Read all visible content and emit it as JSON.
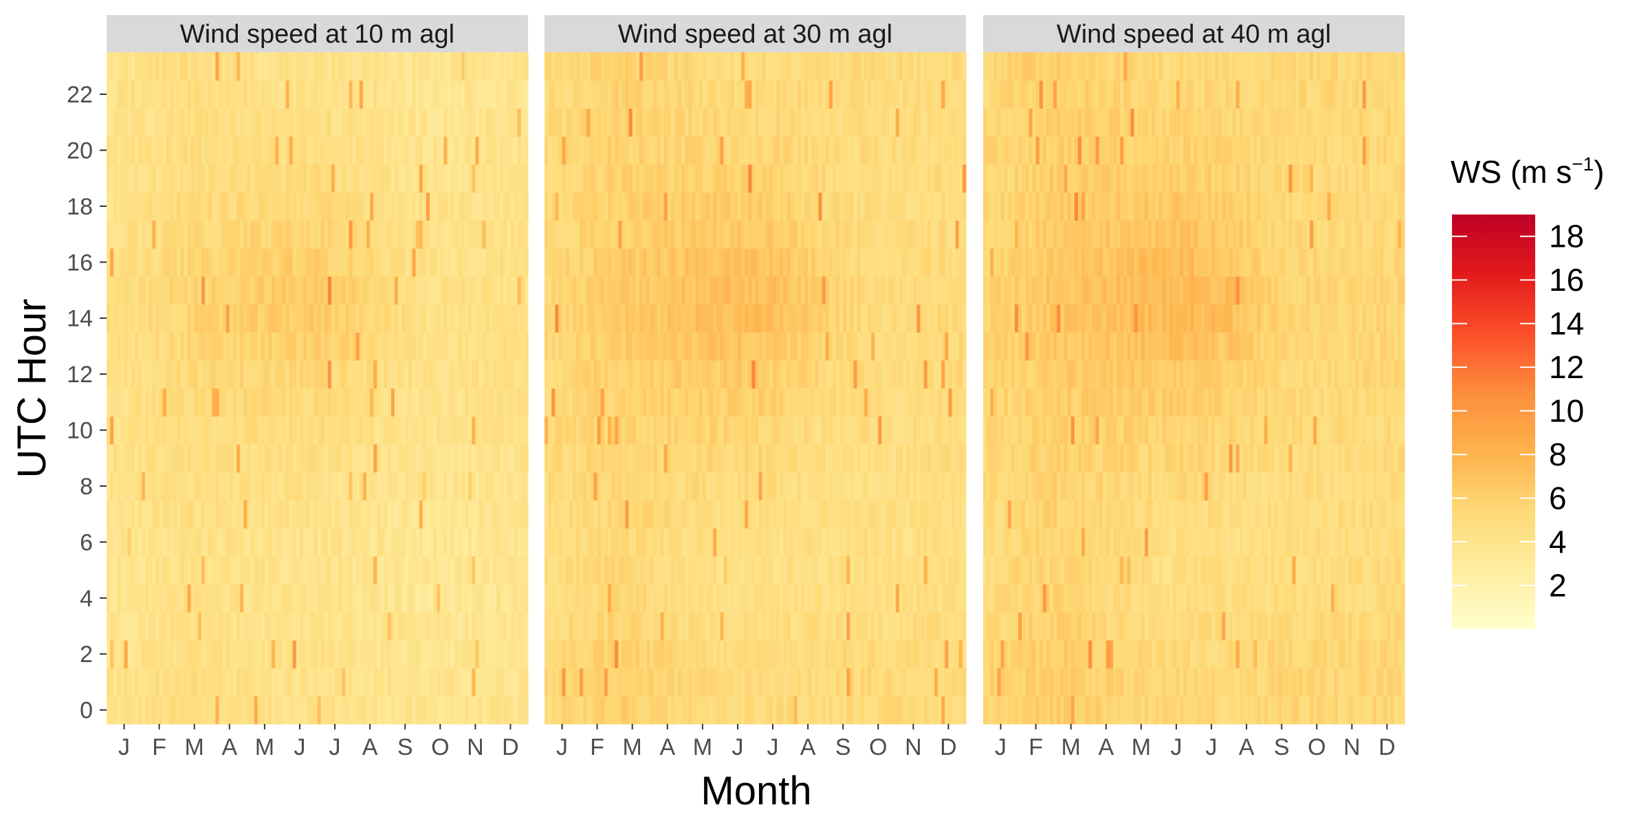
{
  "chart_data": {
    "type": "heatmap",
    "panels": [
      {
        "title": "Wind speed at 10 m agl",
        "height_m": 10
      },
      {
        "title": "Wind speed at 30 m agl",
        "height_m": 30
      },
      {
        "title": "Wind speed at 40 m agl",
        "height_m": 40
      }
    ],
    "xlabel": "Month",
    "ylabel": "UTC Hour",
    "x_categories": [
      "J",
      "F",
      "M",
      "A",
      "M",
      "J",
      "J",
      "A",
      "S",
      "O",
      "N",
      "D"
    ],
    "y_ticks": [
      "0",
      "2",
      "4",
      "6",
      "8",
      "10",
      "12",
      "14",
      "16",
      "18",
      "20",
      "22"
    ],
    "y_range": [
      0,
      23
    ],
    "legend": {
      "title": "WS (m s",
      "title_superscript": "−1",
      "title_close": ")",
      "ticks": [
        "2",
        "4",
        "6",
        "8",
        "10",
        "12",
        "14",
        "16",
        "18"
      ],
      "range": [
        0,
        19
      ],
      "colors": [
        "#ffffcc",
        "#ffeda0",
        "#fed976",
        "#feb24c",
        "#fd8d3c",
        "#fc4e2a",
        "#e31a1c",
        "#bd0026"
      ]
    },
    "approximate_mean_ws_by_hour_and_month": {
      "note": "values in m s-1, rows = UTC hour 0..23, cols = Jan..Dec (estimated from colour)",
      "10m": [
        [
          4.0,
          4.3,
          4.8,
          4.6,
          4.4,
          4.2,
          4.3,
          4.1,
          3.9,
          3.8,
          3.8,
          3.9
        ],
        [
          4.0,
          4.3,
          4.8,
          4.6,
          4.4,
          4.2,
          4.3,
          4.1,
          3.9,
          3.8,
          3.8,
          3.9
        ],
        [
          4.0,
          4.2,
          4.6,
          4.5,
          4.3,
          4.1,
          4.2,
          4.0,
          3.9,
          3.8,
          3.8,
          3.9
        ],
        [
          3.9,
          4.1,
          4.5,
          4.4,
          4.2,
          4.0,
          4.1,
          3.9,
          3.8,
          3.7,
          3.7,
          3.8
        ],
        [
          3.8,
          4.0,
          4.4,
          4.3,
          4.1,
          4.0,
          4.0,
          3.8,
          3.7,
          3.6,
          3.6,
          3.7
        ],
        [
          3.8,
          4.0,
          4.4,
          4.3,
          4.1,
          4.0,
          4.0,
          3.8,
          3.7,
          3.6,
          3.6,
          3.7
        ],
        [
          3.8,
          4.0,
          4.5,
          4.4,
          4.2,
          4.1,
          4.1,
          3.9,
          3.7,
          3.6,
          3.6,
          3.7
        ],
        [
          3.9,
          4.1,
          4.6,
          4.5,
          4.3,
          4.2,
          4.2,
          4.0,
          3.8,
          3.7,
          3.7,
          3.8
        ],
        [
          4.0,
          4.2,
          4.7,
          4.6,
          4.5,
          4.4,
          4.4,
          4.2,
          3.9,
          3.8,
          3.8,
          3.9
        ],
        [
          4.1,
          4.3,
          4.8,
          4.7,
          4.7,
          4.6,
          4.6,
          4.4,
          4.0,
          3.9,
          3.9,
          4.0
        ],
        [
          4.2,
          4.4,
          4.9,
          4.8,
          4.9,
          4.8,
          4.8,
          4.6,
          4.2,
          4.0,
          4.0,
          4.1
        ],
        [
          4.3,
          4.5,
          5.0,
          5.0,
          5.1,
          5.1,
          5.1,
          4.9,
          4.4,
          4.1,
          4.1,
          4.2
        ],
        [
          4.4,
          4.6,
          5.2,
          5.2,
          5.4,
          5.4,
          5.4,
          5.2,
          4.6,
          4.2,
          4.2,
          4.3
        ],
        [
          4.5,
          4.7,
          5.4,
          5.5,
          5.8,
          5.9,
          5.9,
          5.6,
          4.9,
          4.3,
          4.3,
          4.4
        ],
        [
          4.5,
          4.8,
          5.5,
          5.7,
          6.1,
          6.3,
          6.3,
          5.9,
          5.1,
          4.4,
          4.4,
          4.5
        ],
        [
          4.5,
          4.8,
          5.5,
          5.7,
          6.1,
          6.3,
          6.3,
          5.9,
          5.1,
          4.4,
          4.4,
          4.5
        ],
        [
          4.4,
          4.7,
          5.4,
          5.5,
          5.9,
          6.0,
          6.0,
          5.6,
          4.9,
          4.3,
          4.3,
          4.4
        ],
        [
          4.3,
          4.6,
          5.1,
          5.2,
          5.5,
          5.6,
          5.6,
          5.3,
          4.6,
          4.2,
          4.2,
          4.3
        ],
        [
          4.2,
          4.5,
          5.0,
          5.0,
          5.2,
          5.3,
          5.3,
          5.0,
          4.4,
          4.1,
          4.1,
          4.2
        ],
        [
          4.1,
          4.4,
          4.9,
          4.8,
          4.9,
          4.9,
          4.9,
          4.7,
          4.2,
          4.0,
          4.0,
          4.1
        ],
        [
          4.1,
          4.4,
          4.9,
          4.8,
          4.7,
          4.6,
          4.6,
          4.4,
          4.1,
          3.9,
          3.9,
          4.0
        ],
        [
          4.0,
          4.3,
          4.8,
          4.7,
          4.6,
          4.5,
          4.5,
          4.3,
          4.0,
          3.9,
          3.9,
          4.0
        ],
        [
          4.0,
          4.3,
          4.8,
          4.7,
          4.5,
          4.4,
          4.4,
          4.2,
          4.0,
          3.8,
          3.8,
          3.9
        ],
        [
          4.0,
          4.3,
          4.8,
          4.6,
          4.4,
          4.3,
          4.3,
          4.1,
          3.9,
          3.8,
          3.8,
          3.9
        ]
      ],
      "30m": [
        [
          5.2,
          5.5,
          6.0,
          5.7,
          5.3,
          5.0,
          5.1,
          5.0,
          5.0,
          5.2,
          5.1,
          5.1
        ],
        [
          5.3,
          5.6,
          6.1,
          5.8,
          5.4,
          5.0,
          5.1,
          5.1,
          5.1,
          5.3,
          5.2,
          5.2
        ],
        [
          5.2,
          5.5,
          6.0,
          5.6,
          5.2,
          4.9,
          5.0,
          5.0,
          5.0,
          5.2,
          5.1,
          5.1
        ],
        [
          5.0,
          5.3,
          5.7,
          5.3,
          5.0,
          4.7,
          4.8,
          4.8,
          4.8,
          4.9,
          4.8,
          4.9
        ],
        [
          4.8,
          5.1,
          5.5,
          5.1,
          4.8,
          4.6,
          4.6,
          4.6,
          4.6,
          4.7,
          4.6,
          4.7
        ],
        [
          4.7,
          5.0,
          5.4,
          5.0,
          4.7,
          4.5,
          4.5,
          4.5,
          4.5,
          4.6,
          4.5,
          4.6
        ],
        [
          4.7,
          5.0,
          5.4,
          5.0,
          4.8,
          4.6,
          4.6,
          4.5,
          4.4,
          4.5,
          4.5,
          4.6
        ],
        [
          4.8,
          5.1,
          5.5,
          5.2,
          5.0,
          4.8,
          4.8,
          4.6,
          4.5,
          4.5,
          4.5,
          4.6
        ],
        [
          4.9,
          5.2,
          5.6,
          5.3,
          5.2,
          5.0,
          5.0,
          4.8,
          4.6,
          4.6,
          4.6,
          4.7
        ],
        [
          5.0,
          5.3,
          5.7,
          5.5,
          5.4,
          5.3,
          5.3,
          5.0,
          4.7,
          4.7,
          4.7,
          4.8
        ],
        [
          5.1,
          5.4,
          5.8,
          5.6,
          5.7,
          5.6,
          5.6,
          5.3,
          4.9,
          4.8,
          4.8,
          4.9
        ],
        [
          5.2,
          5.5,
          6.0,
          5.8,
          5.9,
          5.9,
          5.9,
          5.6,
          5.1,
          4.9,
          4.9,
          5.0
        ],
        [
          5.3,
          5.6,
          6.1,
          6.1,
          6.3,
          6.3,
          6.3,
          5.9,
          5.3,
          5.0,
          5.0,
          5.1
        ],
        [
          5.4,
          5.7,
          6.3,
          6.4,
          6.7,
          6.9,
          6.9,
          6.4,
          5.6,
          5.1,
          5.1,
          5.2
        ],
        [
          5.4,
          5.8,
          6.4,
          6.6,
          7.0,
          7.3,
          7.3,
          6.8,
          5.8,
          5.2,
          5.2,
          5.3
        ],
        [
          5.4,
          5.8,
          6.4,
          6.6,
          7.0,
          7.3,
          7.3,
          6.8,
          5.8,
          5.2,
          5.2,
          5.3
        ],
        [
          5.3,
          5.7,
          6.3,
          6.5,
          6.8,
          7.0,
          7.0,
          6.5,
          5.6,
          5.1,
          5.1,
          5.2
        ],
        [
          5.2,
          5.6,
          6.1,
          6.2,
          6.5,
          6.6,
          6.6,
          6.2,
          5.4,
          5.0,
          5.0,
          5.1
        ],
        [
          5.1,
          5.5,
          6.0,
          6.0,
          6.2,
          6.2,
          6.2,
          5.9,
          5.2,
          4.9,
          4.9,
          5.0
        ],
        [
          5.1,
          5.4,
          5.9,
          5.8,
          5.9,
          5.8,
          5.8,
          5.6,
          5.1,
          4.9,
          4.9,
          5.0
        ],
        [
          5.1,
          5.4,
          5.9,
          5.7,
          5.7,
          5.5,
          5.5,
          5.3,
          5.0,
          5.0,
          4.9,
          5.0
        ],
        [
          5.1,
          5.4,
          5.9,
          5.7,
          5.5,
          5.3,
          5.3,
          5.2,
          5.0,
          5.0,
          5.0,
          5.0
        ],
        [
          5.1,
          5.4,
          5.9,
          5.7,
          5.4,
          5.1,
          5.2,
          5.1,
          5.0,
          5.1,
          5.0,
          5.0
        ],
        [
          5.2,
          5.5,
          6.0,
          5.7,
          5.3,
          5.0,
          5.1,
          5.0,
          5.0,
          5.2,
          5.1,
          5.1
        ]
      ],
      "40m": [
        [
          5.5,
          5.8,
          6.3,
          5.9,
          5.5,
          5.2,
          5.3,
          5.2,
          5.3,
          5.5,
          5.4,
          5.4
        ],
        [
          5.6,
          5.9,
          6.4,
          6.0,
          5.6,
          5.2,
          5.3,
          5.3,
          5.4,
          5.6,
          5.5,
          5.5
        ],
        [
          5.5,
          5.8,
          6.3,
          5.9,
          5.4,
          5.1,
          5.2,
          5.2,
          5.3,
          5.5,
          5.4,
          5.4
        ],
        [
          5.3,
          5.6,
          6.0,
          5.6,
          5.2,
          4.9,
          5.0,
          5.0,
          5.1,
          5.2,
          5.1,
          5.2
        ],
        [
          5.1,
          5.4,
          5.8,
          5.3,
          5.0,
          4.7,
          4.8,
          4.8,
          4.8,
          5.0,
          4.9,
          5.0
        ],
        [
          5.0,
          5.3,
          5.7,
          5.2,
          4.9,
          4.6,
          4.7,
          4.7,
          4.7,
          4.9,
          4.8,
          4.9
        ],
        [
          5.0,
          5.3,
          5.7,
          5.2,
          5.0,
          4.8,
          4.8,
          4.7,
          4.6,
          4.8,
          4.7,
          4.8
        ],
        [
          5.1,
          5.4,
          5.8,
          5.4,
          5.2,
          5.0,
          5.0,
          4.8,
          4.7,
          4.8,
          4.8,
          4.9
        ],
        [
          5.2,
          5.5,
          5.9,
          5.6,
          5.4,
          5.2,
          5.2,
          5.0,
          4.8,
          4.9,
          4.9,
          5.0
        ],
        [
          5.3,
          5.6,
          6.0,
          5.7,
          5.6,
          5.5,
          5.5,
          5.2,
          4.9,
          5.0,
          5.0,
          5.1
        ],
        [
          5.4,
          5.7,
          6.1,
          5.9,
          5.9,
          5.8,
          5.8,
          5.5,
          5.1,
          5.1,
          5.1,
          5.2
        ],
        [
          5.5,
          5.8,
          6.3,
          6.1,
          6.2,
          6.2,
          6.2,
          5.8,
          5.3,
          5.2,
          5.2,
          5.3
        ],
        [
          5.6,
          5.9,
          6.4,
          6.4,
          6.6,
          6.6,
          6.6,
          6.2,
          5.5,
          5.3,
          5.3,
          5.4
        ],
        [
          5.7,
          6.0,
          6.6,
          6.7,
          7.0,
          7.2,
          7.2,
          6.7,
          5.8,
          5.4,
          5.4,
          5.5
        ],
        [
          5.7,
          6.1,
          6.7,
          6.9,
          7.3,
          7.6,
          7.6,
          7.1,
          6.0,
          5.5,
          5.5,
          5.6
        ],
        [
          5.7,
          6.1,
          6.7,
          6.9,
          7.3,
          7.6,
          7.6,
          7.1,
          6.0,
          5.5,
          5.5,
          5.6
        ],
        [
          5.6,
          6.0,
          6.6,
          6.8,
          7.1,
          7.3,
          7.3,
          6.8,
          5.8,
          5.4,
          5.4,
          5.5
        ],
        [
          5.5,
          5.9,
          6.4,
          6.5,
          6.8,
          6.9,
          6.9,
          6.5,
          5.6,
          5.3,
          5.3,
          5.4
        ],
        [
          5.4,
          5.8,
          6.3,
          6.3,
          6.5,
          6.5,
          6.5,
          6.2,
          5.5,
          5.2,
          5.2,
          5.3
        ],
        [
          5.4,
          5.7,
          6.2,
          6.1,
          6.2,
          6.1,
          6.1,
          5.9,
          5.4,
          5.2,
          5.2,
          5.3
        ],
        [
          5.4,
          5.7,
          6.2,
          6.0,
          6.0,
          5.8,
          5.8,
          5.6,
          5.3,
          5.3,
          5.2,
          5.3
        ],
        [
          5.4,
          5.7,
          6.2,
          6.0,
          5.8,
          5.6,
          5.6,
          5.4,
          5.3,
          5.3,
          5.3,
          5.3
        ],
        [
          5.4,
          5.7,
          6.2,
          6.0,
          5.7,
          5.4,
          5.5,
          5.3,
          5.3,
          5.4,
          5.3,
          5.3
        ],
        [
          5.5,
          5.8,
          6.3,
          5.9,
          5.6,
          5.3,
          5.4,
          5.3,
          5.3,
          5.5,
          5.4,
          5.4
        ]
      ]
    }
  }
}
